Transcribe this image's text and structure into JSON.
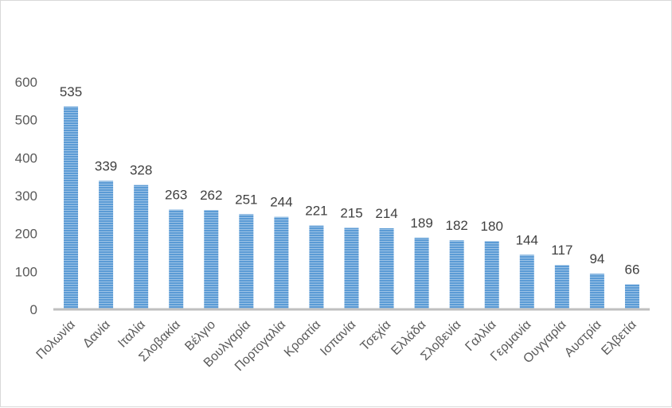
{
  "chart_data": {
    "type": "bar",
    "categories": [
      "Πολωνία",
      "Δανία",
      "Ιταλία",
      "Σλοβακία",
      "Βέλγιο",
      "Βουλγαρία",
      "Πορτογαλία",
      "Κροατία",
      "Ισπανία",
      "Τσεχία",
      "Ελλάδα",
      "Σλοβενία",
      "Γαλλία",
      "Γερμανία",
      "Ουγγαρία",
      "Αυστρία",
      "Ελβετία"
    ],
    "values": [
      535,
      339,
      328,
      263,
      262,
      251,
      244,
      221,
      215,
      214,
      189,
      182,
      180,
      144,
      117,
      94,
      66
    ],
    "yticks": [
      0,
      100,
      200,
      300,
      400,
      500,
      600
    ],
    "ylim": [
      0,
      600
    ],
    "grid": false,
    "legend": "none",
    "bar_color": "#5b9bd5",
    "axis_color": "#bfbfbf"
  }
}
